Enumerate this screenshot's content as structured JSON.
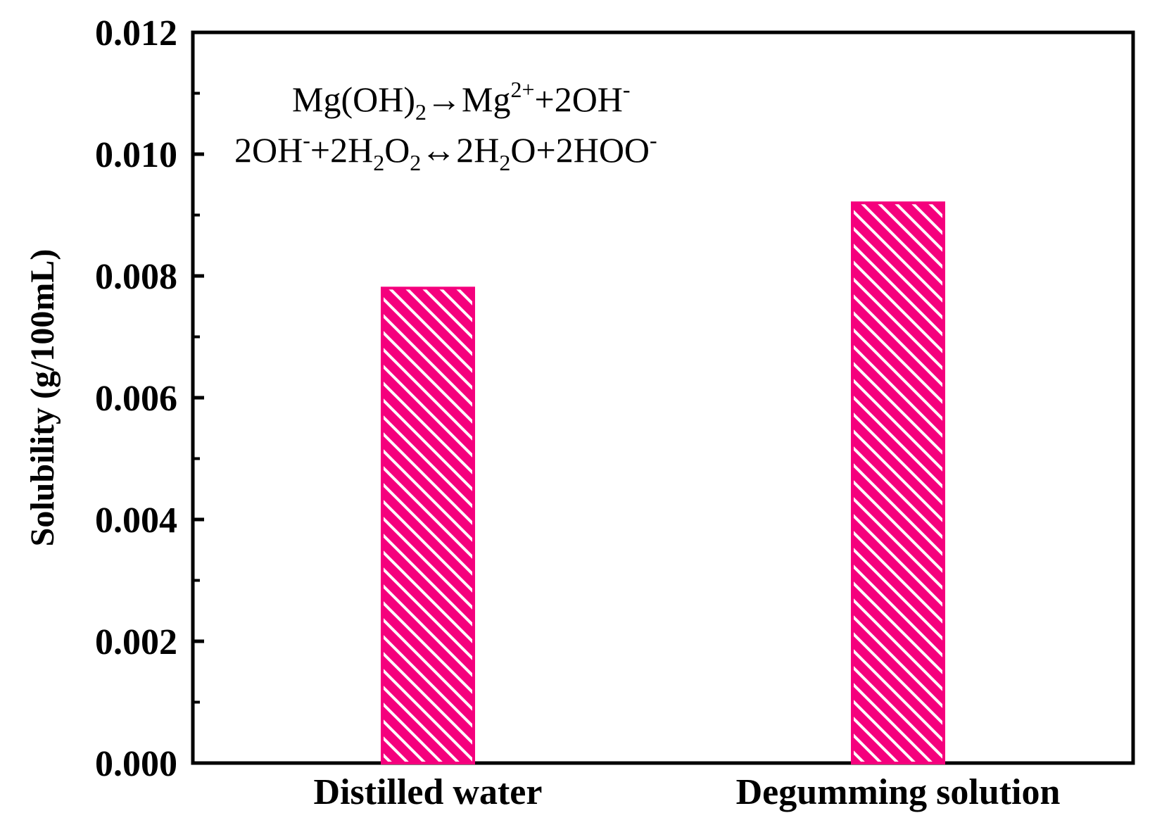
{
  "chart_data": {
    "type": "bar",
    "categories": [
      "Distilled water",
      "Degumming solution"
    ],
    "values": [
      0.0078,
      0.0092
    ],
    "title": "",
    "xlabel": "",
    "ylabel": "Solubility (g/100mL)",
    "ylim": [
      0,
      0.012
    ],
    "yticks": [
      "0.000",
      "0.002",
      "0.004",
      "0.006",
      "0.008",
      "0.010",
      "0.012"
    ],
    "bar_color": "#f5007d",
    "hatch_color": "#ffffff",
    "grid": false,
    "annotation": {
      "line1": {
        "part1": "Mg(OH)",
        "sub1": "2",
        "part2": "→Mg",
        "sup1": "2+",
        "part3": "+2OH",
        "sup2": "-"
      },
      "line2": {
        "part1": "2OH",
        "sup1": "-",
        "part2": "+2H",
        "sub1": "2",
        "part3": "O",
        "sub2": "2",
        "part4": "↔2H",
        "sub3": "2",
        "part5": "O+2HOO",
        "sup2": "-"
      }
    }
  }
}
